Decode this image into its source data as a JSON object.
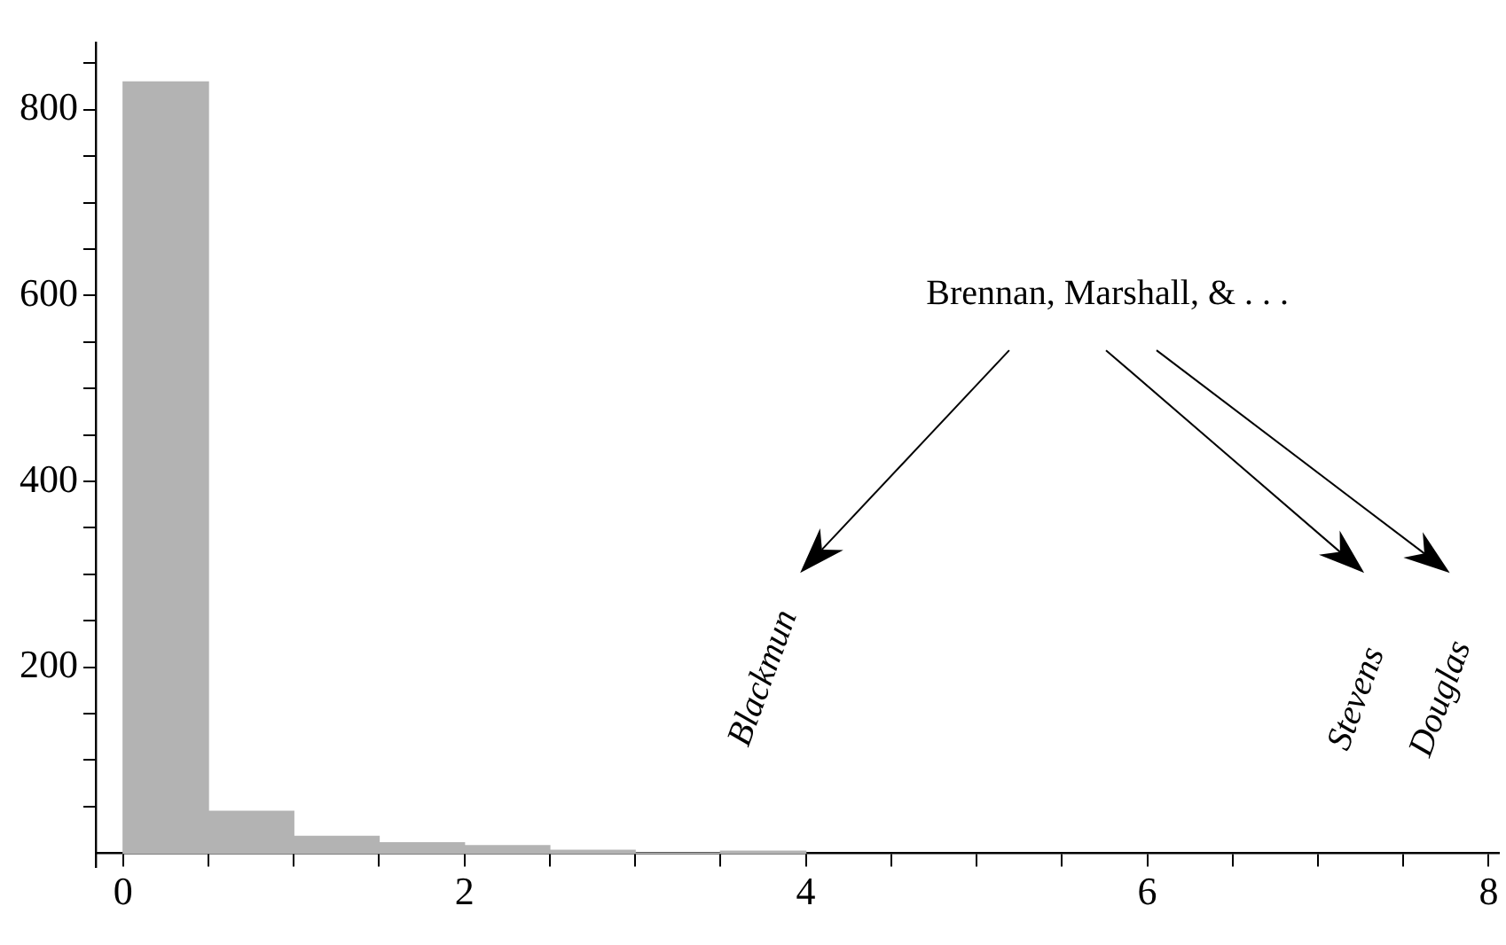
{
  "chart_data": {
    "type": "histogram",
    "bins": [
      0,
      0.5,
      1,
      1.5,
      2,
      2.5,
      3,
      3.5,
      4
    ],
    "values": [
      830,
      45,
      18,
      11,
      8,
      3,
      0,
      2
    ],
    "color": "#b3b3b3",
    "xlim": [
      -0.16,
      8.06
    ],
    "xticks": [
      0,
      {
        "value": 0.5,
        "label": null
      },
      {
        "value": 1,
        "label": null
      },
      {
        "value": 1.5,
        "label": null
      },
      2,
      {
        "value": 2.5,
        "label": null
      },
      {
        "value": 3,
        "label": null
      },
      {
        "value": 3.5,
        "label": null
      },
      4,
      {
        "value": 4.5,
        "label": null
      },
      {
        "value": 5,
        "label": null
      },
      {
        "value": 5.5,
        "label": null
      },
      6,
      {
        "value": 6.5,
        "label": null
      },
      {
        "value": 7,
        "label": null
      },
      {
        "value": 7.5,
        "label": null
      },
      8
    ],
    "ylim": [
      -15,
      872
    ],
    "yticks": [
      {
        "value": 50,
        "label": null
      },
      {
        "value": 100,
        "label": null
      },
      {
        "value": 150,
        "label": null
      },
      200,
      {
        "value": 250,
        "label": null
      },
      {
        "value": 300,
        "label": null
      },
      {
        "value": 350,
        "label": null
      },
      400,
      {
        "value": 450,
        "label": null
      },
      {
        "value": 500,
        "label": null
      },
      {
        "value": 550,
        "label": null
      },
      600,
      {
        "value": 650,
        "label": null
      },
      {
        "value": 700,
        "label": null
      },
      {
        "value": 750,
        "label": null
      },
      800,
      {
        "value": 850,
        "label": null
      }
    ],
    "annotations": [
      "Brennan, Marshall, & . . .",
      "Blackmun",
      "Stevens",
      "Douglas"
    ]
  }
}
